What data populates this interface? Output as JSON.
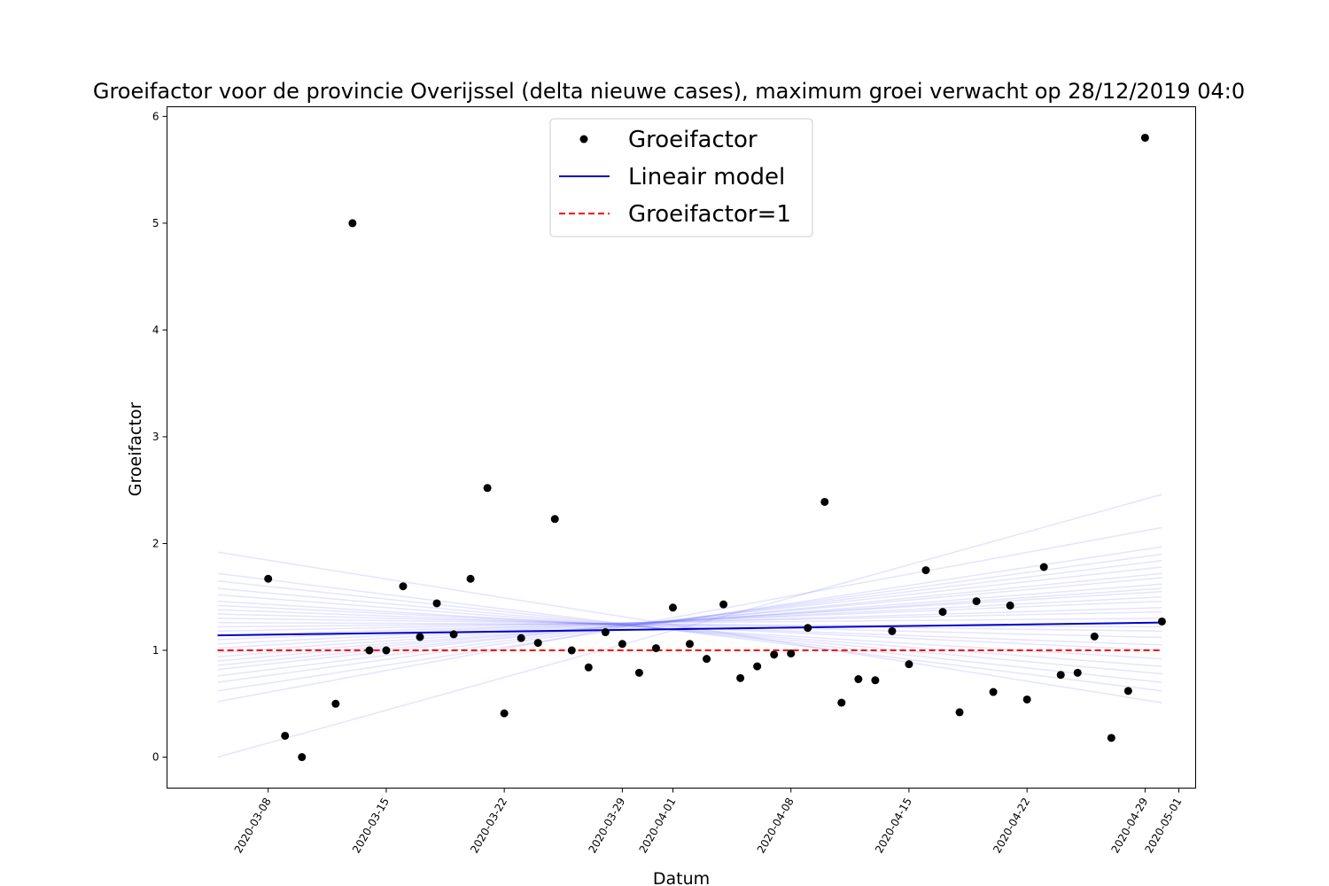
{
  "chart_data": {
    "type": "scatter",
    "title": "Groeifactor voor de provincie Overijssel (delta nieuwe cases), maximum groei verwacht op 28/12/2019 04:0",
    "xlabel": "Datum",
    "ylabel": "Groeifactor",
    "xlim": [
      "2020-03-02",
      "2020-05-02"
    ],
    "ylim": [
      -0.29,
      6.09
    ],
    "x_ticks": [
      "2020-03-08",
      "2020-03-15",
      "2020-03-22",
      "2020-03-29",
      "2020-04-01",
      "2020-04-08",
      "2020-04-15",
      "2020-04-22",
      "2020-04-29",
      "2020-05-01"
    ],
    "y_ticks": [
      "0",
      "1",
      "2",
      "3",
      "4",
      "5",
      "6"
    ],
    "grid": false,
    "legend_position": "upper center",
    "legend": [
      "Groeifactor",
      "Lineair model",
      "Groeifactor=1"
    ],
    "colors": {
      "points": "#000000",
      "model": "#0000cc",
      "reference": "#ff0000",
      "ensemble": "#6b6bff"
    },
    "series": [
      {
        "name": "Groeifactor",
        "kind": "points",
        "points": [
          [
            "2020-03-08",
            1.67
          ],
          [
            "2020-03-09",
            0.2
          ],
          [
            "2020-03-10",
            0.0
          ],
          [
            "2020-03-12",
            0.5
          ],
          [
            "2020-03-13",
            5.0
          ],
          [
            "2020-03-14",
            1.0
          ],
          [
            "2020-03-15",
            1.0
          ],
          [
            "2020-03-16",
            1.6
          ],
          [
            "2020-03-17",
            1.125
          ],
          [
            "2020-03-18",
            1.44
          ],
          [
            "2020-03-19",
            1.15
          ],
          [
            "2020-03-20",
            1.67
          ],
          [
            "2020-03-21",
            2.52
          ],
          [
            "2020-03-22",
            0.41
          ],
          [
            "2020-03-23",
            1.115
          ],
          [
            "2020-03-24",
            1.07
          ],
          [
            "2020-03-25",
            2.23
          ],
          [
            "2020-03-26",
            1.0
          ],
          [
            "2020-03-27",
            0.84
          ],
          [
            "2020-03-28",
            1.17
          ],
          [
            "2020-03-29",
            1.06
          ],
          [
            "2020-03-30",
            0.79
          ],
          [
            "2020-03-31",
            1.02
          ],
          [
            "2020-04-01",
            1.4
          ],
          [
            "2020-04-02",
            1.06
          ],
          [
            "2020-04-03",
            0.92
          ],
          [
            "2020-04-04",
            1.43
          ],
          [
            "2020-04-05",
            0.74
          ],
          [
            "2020-04-06",
            0.85
          ],
          [
            "2020-04-07",
            0.96
          ],
          [
            "2020-04-08",
            0.97
          ],
          [
            "2020-04-09",
            1.21
          ],
          [
            "2020-04-10",
            2.39
          ],
          [
            "2020-04-11",
            0.51
          ],
          [
            "2020-04-12",
            0.73
          ],
          [
            "2020-04-13",
            0.72
          ],
          [
            "2020-04-14",
            1.18
          ],
          [
            "2020-04-15",
            0.87
          ],
          [
            "2020-04-16",
            1.75
          ],
          [
            "2020-04-17",
            1.36
          ],
          [
            "2020-04-18",
            0.42
          ],
          [
            "2020-04-19",
            1.46
          ],
          [
            "2020-04-20",
            0.61
          ],
          [
            "2020-04-21",
            1.42
          ],
          [
            "2020-04-22",
            0.54
          ],
          [
            "2020-04-23",
            1.78
          ],
          [
            "2020-04-24",
            0.77
          ],
          [
            "2020-04-25",
            0.79
          ],
          [
            "2020-04-26",
            1.13
          ],
          [
            "2020-04-27",
            0.18
          ],
          [
            "2020-04-28",
            0.62
          ],
          [
            "2020-04-29",
            5.8
          ],
          [
            "2020-04-30",
            1.27
          ]
        ]
      },
      {
        "name": "Lineair model",
        "kind": "line",
        "x": [
          "2020-03-05",
          "2020-04-30"
        ],
        "y": [
          1.14,
          1.26
        ]
      },
      {
        "name": "Groeifactor=1",
        "kind": "dashed-line",
        "x": [
          "2020-03-05",
          "2020-04-30"
        ],
        "y": [
          1.0,
          1.0
        ]
      },
      {
        "kind": "ensemble-lines",
        "x": [
          "2020-03-05",
          "2020-04-30"
        ],
        "lines": [
          [
            0.0,
            2.46
          ],
          [
            0.52,
            2.15
          ],
          [
            0.62,
            1.97
          ],
          [
            0.7,
            1.9
          ],
          [
            0.76,
            1.84
          ],
          [
            0.82,
            1.78
          ],
          [
            0.86,
            1.72
          ],
          [
            0.9,
            1.68
          ],
          [
            0.94,
            1.62
          ],
          [
            0.98,
            1.58
          ],
          [
            1.02,
            1.55
          ],
          [
            1.06,
            1.5
          ],
          [
            1.1,
            1.46
          ],
          [
            1.14,
            1.4
          ],
          [
            1.18,
            1.36
          ],
          [
            1.22,
            1.3
          ],
          [
            1.26,
            1.22
          ],
          [
            1.3,
            1.18
          ],
          [
            1.34,
            1.12
          ],
          [
            1.38,
            1.05
          ],
          [
            1.42,
            1.0
          ],
          [
            1.46,
            0.92
          ],
          [
            1.52,
            0.85
          ],
          [
            1.58,
            0.78
          ],
          [
            1.65,
            0.7
          ],
          [
            1.72,
            0.62
          ],
          [
            1.92,
            0.51
          ]
        ]
      }
    ]
  }
}
